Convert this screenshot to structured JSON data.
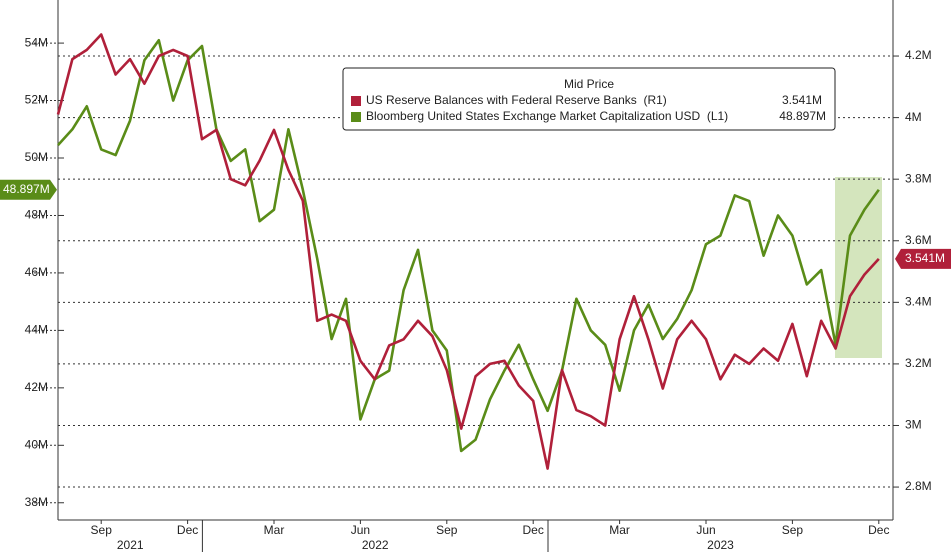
{
  "chart_data": {
    "type": "line",
    "categories": [
      null,
      null,
      null,
      "Sep",
      null,
      null,
      null,
      null,
      null,
      "Dec",
      null,
      null,
      null,
      null,
      null,
      "Mar",
      null,
      null,
      null,
      null,
      null,
      "Jun",
      null,
      null,
      null,
      null,
      null,
      "Sep",
      null,
      null,
      null,
      null,
      null,
      "Dec",
      null,
      null,
      null,
      null,
      null,
      "Mar",
      null,
      null,
      null,
      null,
      null,
      "Jun",
      null,
      null,
      null,
      null,
      null,
      "Sep",
      null,
      null,
      null,
      null,
      null,
      "Dec",
      null
    ],
    "years": [
      "2021",
      "2022",
      "2023"
    ],
    "legend_title": "Mid Price",
    "series": [
      {
        "name": "US Reserve Balances with Federal Reserve Banks  (R1)",
        "color": "#b0203a",
        "axis": "y2",
        "last_value_label": "3.541M",
        "values": [
          4.01,
          4.19,
          4.22,
          4.27,
          4.14,
          4.19,
          4.11,
          4.2,
          4.22,
          4.2,
          3.93,
          3.96,
          3.8,
          3.78,
          3.86,
          3.96,
          3.83,
          3.73,
          3.34,
          3.36,
          3.34,
          3.21,
          3.15,
          3.26,
          3.28,
          3.34,
          3.29,
          3.18,
          2.99,
          3.16,
          3.2,
          3.21,
          3.13,
          3.08,
          2.86,
          3.18,
          3.05,
          3.03,
          3.0,
          3.28,
          3.42,
          3.28,
          3.12,
          3.28,
          3.34,
          3.28,
          3.15,
          3.23,
          3.2,
          3.25,
          3.21,
          3.33,
          3.16,
          3.34,
          3.25,
          3.42,
          3.49,
          3.541,
          null
        ]
      },
      {
        "name": "Bloomberg United States Exchange Market Capitalization USD  (L1)",
        "color": "#5a8c18",
        "last_value_label": "48.897M",
        "values": [
          50.45,
          51.0,
          51.8,
          50.3,
          50.1,
          51.3,
          53.4,
          54.1,
          52.0,
          53.4,
          53.9,
          51.0,
          49.9,
          50.3,
          47.8,
          48.2,
          51.0,
          48.9,
          46.5,
          43.7,
          45.1,
          40.9,
          42.3,
          42.6,
          45.4,
          46.8,
          44.0,
          43.3,
          39.8,
          40.2,
          41.6,
          42.6,
          43.5,
          42.3,
          41.2,
          42.6,
          45.1,
          44.0,
          43.5,
          41.9,
          44.0,
          44.9,
          43.7,
          44.4,
          45.4,
          47.0,
          47.3,
          48.7,
          48.5,
          46.6,
          48.0,
          47.3,
          45.6,
          46.1,
          43.5,
          47.3,
          48.2,
          48.897,
          null
        ]
      }
    ],
    "ylim": [
      37.4,
      55.5
    ],
    "yticks": [
      {
        "value": 38,
        "label": "38M"
      },
      {
        "value": 40,
        "label": "40M"
      },
      {
        "value": 42,
        "label": "42M"
      },
      {
        "value": 44,
        "label": "44M"
      },
      {
        "value": 46,
        "label": "46M"
      },
      {
        "value": 48,
        "label": "48M"
      },
      {
        "value": 50,
        "label": "50M"
      },
      {
        "value": 52,
        "label": "52M"
      },
      {
        "value": 54,
        "label": "54M"
      }
    ],
    "y2lim": [
      2.693,
      4.382
    ],
    "y2ticks": [
      {
        "value": 2.8,
        "label": "2.8M"
      },
      {
        "value": 3,
        "label": "3M"
      },
      {
        "value": 3.2,
        "label": "3.2M"
      },
      {
        "value": 3.4,
        "label": "3.4M"
      },
      {
        "value": 3.6,
        "label": "3.6M"
      },
      {
        "value": 3.8,
        "label": "3.8M"
      },
      {
        "value": 4,
        "label": "4M"
      },
      {
        "value": 4.2,
        "label": "4.2M"
      }
    ],
    "grid": true
  }
}
